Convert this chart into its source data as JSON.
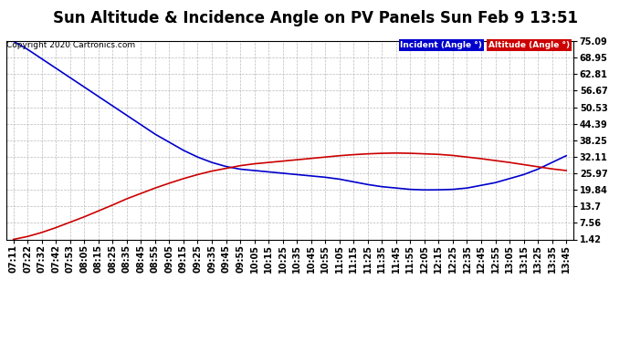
{
  "title": "Sun Altitude & Incidence Angle on PV Panels Sun Feb 9 13:51",
  "copyright": "Copyright 2020 Cartronics.com",
  "legend_labels": [
    "Incident (Angle °)",
    "Altitude (Angle °)"
  ],
  "legend_bg_colors": [
    "#0000cc",
    "#cc0000"
  ],
  "legend_text_colors": [
    "#ffffff",
    "#ffffff"
  ],
  "y_ticks": [
    1.42,
    7.56,
    13.7,
    19.84,
    25.97,
    32.11,
    38.25,
    44.39,
    50.53,
    56.67,
    62.81,
    68.95,
    75.09
  ],
  "x_labels": [
    "07:11",
    "07:22",
    "07:32",
    "07:42",
    "07:53",
    "08:05",
    "08:15",
    "08:25",
    "08:35",
    "08:45",
    "08:55",
    "09:05",
    "09:15",
    "09:25",
    "09:35",
    "09:45",
    "09:55",
    "10:05",
    "10:15",
    "10:25",
    "10:35",
    "10:45",
    "10:55",
    "11:05",
    "11:15",
    "11:25",
    "11:35",
    "11:45",
    "11:55",
    "12:05",
    "12:15",
    "12:25",
    "12:35",
    "12:45",
    "12:55",
    "13:05",
    "13:15",
    "13:25",
    "13:35",
    "13:45"
  ],
  "blue_line_color": "#0000cc",
  "red_line_color": "#cc0000",
  "background_color": "#ffffff",
  "grid_color": "#aaaaaa",
  "title_fontsize": 12,
  "tick_fontsize": 7,
  "ylim_min": 1.42,
  "ylim_max": 75.09,
  "blue_y": [
    75.0,
    72.0,
    68.5,
    65.0,
    61.5,
    58.0,
    54.5,
    51.0,
    47.5,
    44.0,
    40.5,
    37.5,
    34.5,
    32.0,
    30.0,
    28.5,
    27.5,
    27.0,
    26.5,
    26.0,
    25.5,
    25.0,
    24.5,
    23.8,
    22.8,
    21.8,
    21.0,
    20.5,
    20.0,
    19.8,
    19.84,
    20.0,
    20.5,
    21.5,
    22.5,
    24.0,
    25.5,
    27.5,
    30.0,
    32.5
  ],
  "red_y": [
    1.42,
    2.5,
    4.0,
    5.8,
    7.8,
    9.8,
    12.0,
    14.2,
    16.5,
    18.5,
    20.5,
    22.3,
    24.0,
    25.5,
    26.8,
    27.8,
    28.8,
    29.5,
    30.0,
    30.5,
    31.0,
    31.5,
    32.0,
    32.5,
    32.9,
    33.2,
    33.4,
    33.5,
    33.4,
    33.2,
    33.0,
    32.6,
    32.0,
    31.4,
    30.7,
    30.0,
    29.2,
    28.4,
    27.6,
    27.0
  ]
}
